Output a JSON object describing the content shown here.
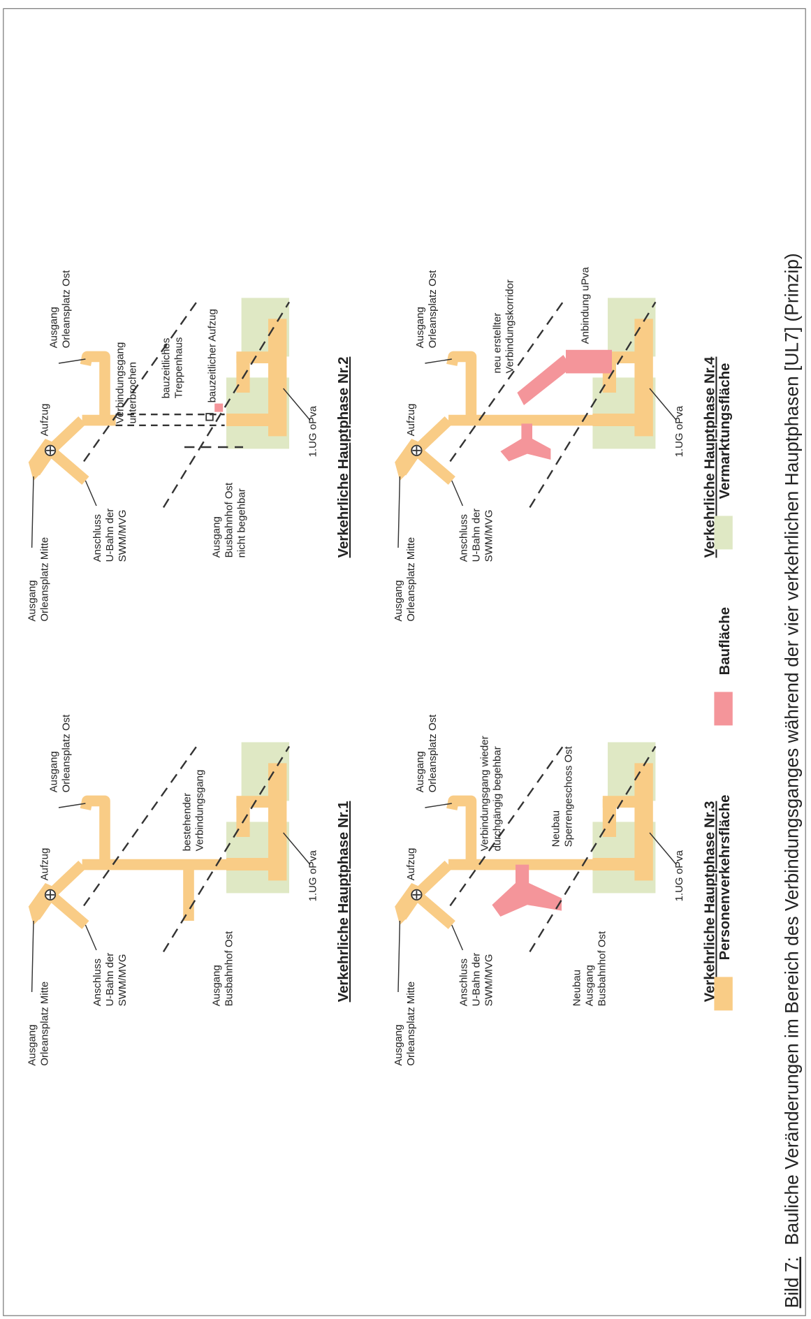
{
  "panels": [
    {
      "title": "Verkehrliche Hauptphase Nr.1",
      "labels": [
        [
          "Ausgang",
          "Orleansplatz Mitte"
        ],
        [
          "Aufzug"
        ],
        [
          "Anschluss",
          "U-Bahn der",
          "SWM/MVG"
        ],
        [
          "Ausgang",
          "Orleansplatz Ost"
        ],
        [
          "1.UG oPva"
        ],
        [
          "Ausgang",
          "Busbahnhof Ost"
        ],
        [
          "bestehender",
          "Verbindungsgang"
        ]
      ]
    },
    {
      "title": "Verkehrliche Hauptphase Nr.2",
      "labels": [
        [
          "Ausgang",
          "Orleansplatz Mitte"
        ],
        [
          "Aufzug"
        ],
        [
          "Anschluss",
          "U-Bahn der",
          "SWM/MVG"
        ],
        [
          "Ausgang",
          "Orleansplatz Ost"
        ],
        [
          "1.UG oPva"
        ],
        [
          "Ausgang",
          "Busbahnhof Ost",
          "nicht begehbar"
        ],
        [
          "Verbindungsgang",
          "unterbrochen"
        ],
        [
          "bauzeitliches",
          "Treppenhaus"
        ],
        [
          "bauzeitlicher Aufzug"
        ]
      ]
    },
    {
      "title": "Verkehrliche Hauptphase Nr.3",
      "labels": [
        [
          "Ausgang",
          "Orleansplatz Mitte"
        ],
        [
          "Aufzug"
        ],
        [
          "Anschluss",
          "U-Bahn der",
          "SWM/MVG"
        ],
        [
          "Ausgang",
          "Orleansplatz Ost"
        ],
        [
          "1.UG oPva"
        ],
        [
          "Neubau",
          "Ausgang",
          "Busbahnhof Ost"
        ],
        [
          "Verbindungsgang wieder",
          "durchgängig begehbar"
        ],
        [
          "Neubau",
          "Sperrengeschoss Ost"
        ]
      ]
    },
    {
      "title": "Verkehrliche Hauptphase Nr.4",
      "labels": [
        [
          "Ausgang",
          "Orleansplatz Mitte"
        ],
        [
          "Aufzug"
        ],
        [
          "Anschluss",
          "U-Bahn der",
          "SWM/MVG"
        ],
        [
          "Ausgang",
          "Orleansplatz Ost"
        ],
        [
          "1.UG oPva"
        ],
        [
          "neu erstellter",
          "Verbindungskorridor"
        ],
        [
          "Anbindung uPva"
        ]
      ]
    }
  ],
  "legend": [
    {
      "label": "Personenverkehrsfläche",
      "color": "#f9cc86"
    },
    {
      "label": "Baufläche",
      "color": "#f4959a"
    },
    {
      "label": "Vermarktungsfläche",
      "color": "#dfe8c4"
    }
  ],
  "caption": {
    "number": "Bild 7:",
    "text": "Bauliche Veränderungen im Bereich des Verbindungsganges während der vier verkehrlichen Hauptphasen [UL7] (Prinzip)"
  }
}
